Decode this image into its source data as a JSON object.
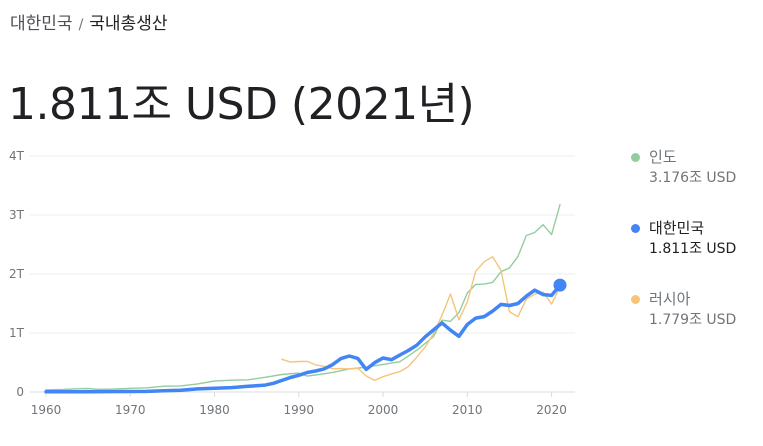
{
  "breadcrumb": {
    "parent": "대한민국",
    "separator": "/",
    "current": "국내총생산"
  },
  "headline": "1.811조 USD (2021년)",
  "legend": [
    {
      "name": "인도",
      "value": "3.176조 USD",
      "color": "#93cd9f",
      "active": false
    },
    {
      "name": "대한민국",
      "value": "1.811조 USD",
      "color": "#4285f4",
      "active": true
    },
    {
      "name": "러시아",
      "value": "1.779조 USD",
      "color": "#f4c57a",
      "active": false
    }
  ],
  "chart_data": {
    "type": "line",
    "xlim": [
      1960,
      2021
    ],
    "ylim": [
      0,
      4
    ],
    "x_ticks": [
      {
        "value": 1960,
        "label": "1960"
      },
      {
        "value": 1970,
        "label": "1970"
      },
      {
        "value": 1980,
        "label": "1980"
      },
      {
        "value": 1990,
        "label": "1990"
      },
      {
        "value": 2000,
        "label": "2000"
      },
      {
        "value": 2010,
        "label": "2010"
      },
      {
        "value": 2020,
        "label": "2020"
      }
    ],
    "y_ticks": [
      {
        "value": 0,
        "label": "0"
      },
      {
        "value": 1,
        "label": "1T"
      },
      {
        "value": 2,
        "label": "2T"
      },
      {
        "value": 3,
        "label": "3T"
      },
      {
        "value": 4,
        "label": "4T"
      }
    ],
    "grid": true,
    "series": [
      {
        "name": "인도",
        "color": "#93cd9f",
        "points": [
          [
            1960,
            0.037
          ],
          [
            1962,
            0.042
          ],
          [
            1964,
            0.056
          ],
          [
            1965,
            0.059
          ],
          [
            1966,
            0.045
          ],
          [
            1968,
            0.05
          ],
          [
            1970,
            0.062
          ],
          [
            1972,
            0.071
          ],
          [
            1974,
            0.099
          ],
          [
            1976,
            0.103
          ],
          [
            1978,
            0.137
          ],
          [
            1980,
            0.186
          ],
          [
            1982,
            0.2
          ],
          [
            1984,
            0.207
          ],
          [
            1986,
            0.249
          ],
          [
            1988,
            0.297
          ],
          [
            1990,
            0.32
          ],
          [
            1991,
            0.27
          ],
          [
            1992,
            0.288
          ],
          [
            1994,
            0.333
          ],
          [
            1996,
            0.39
          ],
          [
            1998,
            0.421
          ],
          [
            2000,
            0.468
          ],
          [
            2002,
            0.514
          ],
          [
            2004,
            0.709
          ],
          [
            2006,
            0.94
          ],
          [
            2007,
            1.217
          ],
          [
            2008,
            1.199
          ],
          [
            2009,
            1.342
          ],
          [
            2010,
            1.676
          ],
          [
            2011,
            1.823
          ],
          [
            2012,
            1.828
          ],
          [
            2013,
            1.857
          ],
          [
            2014,
            2.039
          ],
          [
            2015,
            2.104
          ],
          [
            2016,
            2.295
          ],
          [
            2017,
            2.652
          ],
          [
            2018,
            2.703
          ],
          [
            2019,
            2.836
          ],
          [
            2020,
            2.668
          ],
          [
            2021,
            3.176
          ]
        ]
      },
      {
        "name": "대한민국",
        "color": "#4285f4",
        "points": [
          [
            1960,
            0.004
          ],
          [
            1965,
            0.003
          ],
          [
            1970,
            0.009
          ],
          [
            1972,
            0.011
          ],
          [
            1974,
            0.02
          ],
          [
            1976,
            0.03
          ],
          [
            1978,
            0.052
          ],
          [
            1980,
            0.065
          ],
          [
            1982,
            0.075
          ],
          [
            1984,
            0.096
          ],
          [
            1986,
            0.117
          ],
          [
            1987,
            0.147
          ],
          [
            1988,
            0.197
          ],
          [
            1989,
            0.246
          ],
          [
            1990,
            0.283
          ],
          [
            1991,
            0.331
          ],
          [
            1992,
            0.356
          ],
          [
            1993,
            0.392
          ],
          [
            1994,
            0.463
          ],
          [
            1995,
            0.566
          ],
          [
            1996,
            0.61
          ],
          [
            1997,
            0.57
          ],
          [
            1998,
            0.383
          ],
          [
            1999,
            0.497
          ],
          [
            2000,
            0.576
          ],
          [
            2001,
            0.548
          ],
          [
            2002,
            0.627
          ],
          [
            2003,
            0.703
          ],
          [
            2004,
            0.793
          ],
          [
            2005,
            0.935
          ],
          [
            2006,
            1.053
          ],
          [
            2007,
            1.172
          ],
          [
            2008,
            1.047
          ],
          [
            2009,
            0.944
          ],
          [
            2010,
            1.144
          ],
          [
            2011,
            1.253
          ],
          [
            2012,
            1.278
          ],
          [
            2013,
            1.371
          ],
          [
            2014,
            1.484
          ],
          [
            2015,
            1.466
          ],
          [
            2016,
            1.5
          ],
          [
            2017,
            1.623
          ],
          [
            2018,
            1.725
          ],
          [
            2019,
            1.651
          ],
          [
            2020,
            1.638
          ],
          [
            2021,
            1.811
          ]
        ]
      },
      {
        "name": "러시아",
        "color": "#f4c57a",
        "points": [
          [
            1988,
            0.554
          ],
          [
            1989,
            0.506
          ],
          [
            1990,
            0.517
          ],
          [
            1991,
            0.518
          ],
          [
            1992,
            0.46
          ],
          [
            1993,
            0.435
          ],
          [
            1994,
            0.395
          ],
          [
            1995,
            0.396
          ],
          [
            1996,
            0.392
          ],
          [
            1997,
            0.405
          ],
          [
            1998,
            0.271
          ],
          [
            1999,
            0.196
          ],
          [
            2000,
            0.26
          ],
          [
            2001,
            0.307
          ],
          [
            2002,
            0.345
          ],
          [
            2003,
            0.43
          ],
          [
            2004,
            0.591
          ],
          [
            2005,
            0.764
          ],
          [
            2006,
            0.99
          ],
          [
            2007,
            1.3
          ],
          [
            2008,
            1.661
          ],
          [
            2009,
            1.223
          ],
          [
            2010,
            1.525
          ],
          [
            2011,
            2.046
          ],
          [
            2012,
            2.208
          ],
          [
            2013,
            2.292
          ],
          [
            2014,
            2.059
          ],
          [
            2015,
            1.363
          ],
          [
            2016,
            1.277
          ],
          [
            2017,
            1.574
          ],
          [
            2018,
            1.657
          ],
          [
            2019,
            1.693
          ],
          [
            2020,
            1.489
          ],
          [
            2021,
            1.779
          ]
        ]
      }
    ]
  }
}
